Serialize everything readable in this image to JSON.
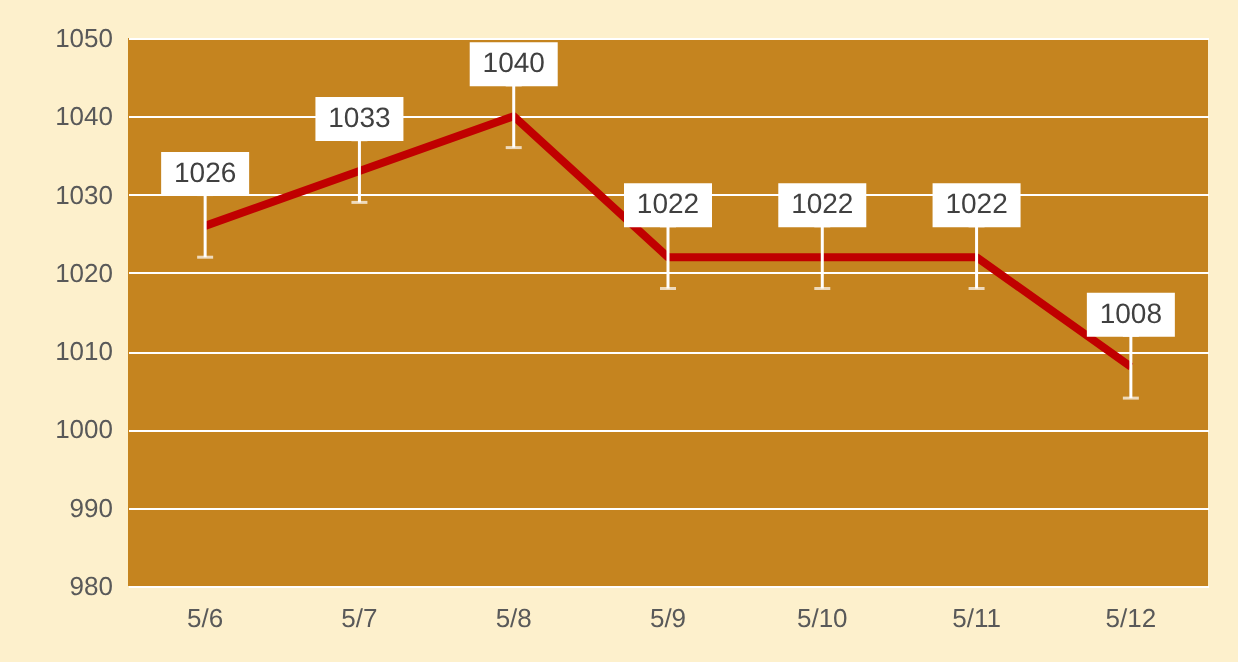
{
  "chart_data": {
    "type": "line",
    "categories": [
      "5/6",
      "5/7",
      "5/8",
      "5/9",
      "5/10",
      "5/11",
      "5/12"
    ],
    "series": [
      {
        "color": "#c00000",
        "values": [
          1026,
          1033,
          1040,
          1022,
          1022,
          1022,
          1008
        ],
        "errors": [
          4,
          4,
          4,
          4,
          4,
          4,
          4
        ]
      }
    ],
    "ylim": [
      980,
      1050
    ],
    "yticks": [
      980,
      990,
      1000,
      1010,
      1020,
      1030,
      1040,
      1050
    ],
    "grid": "y",
    "data_labels": true,
    "marker": "none",
    "line_style": "solid"
  }
}
